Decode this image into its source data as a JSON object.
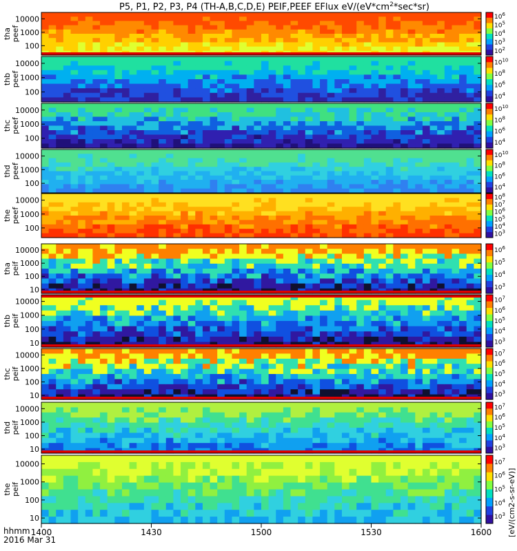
{
  "title": "P5, P1, P2, P3, P4 (TH-A,B,C,D,E) PEIF,PEEF EFlux eV/(eV*cm",
  "title_sup": "2",
  "title_tail": "*sec*sr)",
  "time_label": "hhmm",
  "date_label": "2016 Mar 31",
  "colorbar_axis_label": "[eV/(cm2-s-sr-eV)]",
  "chart_data": {
    "type": "heatmap",
    "x": {
      "ticks": [
        "1400",
        "1430",
        "1500",
        "1530",
        "1600"
      ],
      "unit": "hhmm",
      "range": [
        "14:00",
        "16:00"
      ]
    },
    "y_scale": "log",
    "panels": [
      {
        "label_top": "tha",
        "label_bot": "peef",
        "yticks": [
          "10000",
          "1000",
          "100"
        ],
        "yrange": [
          20,
          30000
        ],
        "cbar": [
          [
            "10",
            "6"
          ],
          [
            "10",
            "5"
          ],
          [
            "10",
            "4"
          ],
          [
            "10",
            "3"
          ],
          [
            "10",
            "2"
          ]
        ],
        "palette": [
          "#e0ff30",
          "#ffd000",
          "#ff8a00",
          "#ff4a00"
        ],
        "gap_band": "bottom"
      },
      {
        "label_top": "thb",
        "label_bot": "peef",
        "yticks": [
          "10000",
          "1000",
          "100"
        ],
        "yrange": [
          20,
          30000
        ],
        "cbar": [
          [
            "10",
            "10"
          ],
          [
            "10",
            "8"
          ],
          [
            "10",
            "6"
          ],
          [
            "10",
            "4"
          ]
        ],
        "palette": [
          "#3020a0",
          "#2050e0",
          "#00b0f0",
          "#20e0a0"
        ]
      },
      {
        "label_top": "thc",
        "label_bot": "peef",
        "yticks": [
          "10000",
          "1000",
          "100"
        ],
        "yrange": [
          20,
          30000
        ],
        "cbar": [
          [
            "10",
            "10"
          ],
          [
            "10",
            "8"
          ],
          [
            "10",
            "6"
          ],
          [
            "10",
            "4"
          ]
        ],
        "palette": [
          "#20107a",
          "#3020b0",
          "#1060e0",
          "#20c0e0",
          "#40e080"
        ]
      },
      {
        "label_top": "thd",
        "label_bot": "peef",
        "yticks": [
          "10000",
          "1000",
          "100"
        ],
        "yrange": [
          20,
          30000
        ],
        "cbar": [
          [
            "10",
            "10"
          ],
          [
            "10",
            "8"
          ],
          [
            "10",
            "6"
          ],
          [
            "10",
            "4"
          ]
        ],
        "palette": [
          "#3080f0",
          "#20b0f0",
          "#30d0e0",
          "#50e090"
        ]
      },
      {
        "label_top": "the",
        "label_bot": "peef",
        "yticks": [
          "10000",
          "1000",
          "100"
        ],
        "yrange": [
          20,
          30000
        ],
        "cbar": [
          [
            "10",
            "8"
          ],
          [
            "10",
            "7"
          ],
          [
            "10",
            "6"
          ],
          [
            "10",
            "5"
          ],
          [
            "10",
            "4"
          ],
          [
            "10",
            "3"
          ]
        ],
        "palette": [
          "#ff3000",
          "#ff7000",
          "#ffb000",
          "#ffe020"
        ]
      },
      {
        "label_top": "tha",
        "label_bot": "peif",
        "yticks": [
          "10000",
          "1000",
          "100",
          "10"
        ],
        "yrange": [
          5,
          30000
        ],
        "cbar": [
          [
            "10",
            "6"
          ],
          [
            "10",
            "5"
          ],
          [
            "10",
            "4"
          ],
          [
            "10",
            "3"
          ]
        ],
        "palette": [
          "#101030",
          "#3018a0",
          "#1050e0",
          "#10a0f0",
          "#30e0b0",
          "#f0ff20",
          "#ff8000"
        ],
        "gap_band": "bottom"
      },
      {
        "label_top": "thb",
        "label_bot": "peif",
        "yticks": [
          "10000",
          "1000",
          "100",
          "10"
        ],
        "yrange": [
          5,
          30000
        ],
        "cbar": [
          [
            "10",
            "7"
          ],
          [
            "10",
            "6"
          ],
          [
            "10",
            "5"
          ],
          [
            "10",
            "4"
          ],
          [
            "10",
            "3"
          ]
        ],
        "palette": [
          "#101030",
          "#3018a0",
          "#1050e0",
          "#10a0f0",
          "#30e0b0",
          "#f0ff20"
        ],
        "gap_band": "both"
      },
      {
        "label_top": "thc",
        "label_bot": "peif",
        "yticks": [
          "10000",
          "1000",
          "100",
          "10"
        ],
        "yrange": [
          5,
          30000
        ],
        "cbar": [
          [
            "10",
            "7"
          ],
          [
            "10",
            "6"
          ],
          [
            "10",
            "5"
          ],
          [
            "10",
            "4"
          ],
          [
            "10",
            "3"
          ]
        ],
        "palette": [
          "#101030",
          "#3018a0",
          "#1050e0",
          "#10a0f0",
          "#30e0b0",
          "#f0ff20",
          "#ff8000"
        ],
        "gap_band": "bottom"
      },
      {
        "label_top": "thd",
        "label_bot": "peif",
        "yticks": [
          "10000",
          "1000",
          "100",
          "10"
        ],
        "yrange": [
          5,
          30000
        ],
        "cbar": [
          [
            "10",
            "7"
          ],
          [
            "10",
            "6"
          ],
          [
            "10",
            "5"
          ],
          [
            "10",
            "4"
          ],
          [
            "10",
            "3"
          ]
        ],
        "palette": [
          "#1050e0",
          "#10a0f0",
          "#30d0e0",
          "#40e090",
          "#b0f040"
        ],
        "gap_band": "bottom"
      },
      {
        "label_top": "the",
        "label_bot": "peif",
        "yticks": [
          "10000",
          "1000",
          "100",
          "10"
        ],
        "yrange": [
          5,
          30000
        ],
        "cbar": [
          [
            "10",
            "7"
          ],
          [
            "10",
            "6"
          ],
          [
            "10",
            "5"
          ],
          [
            "10",
            "4"
          ],
          [
            "10",
            "3"
          ]
        ],
        "palette": [
          "#10a0f0",
          "#30d0e0",
          "#40e090",
          "#90f040",
          "#e0ff30"
        ]
      }
    ]
  }
}
